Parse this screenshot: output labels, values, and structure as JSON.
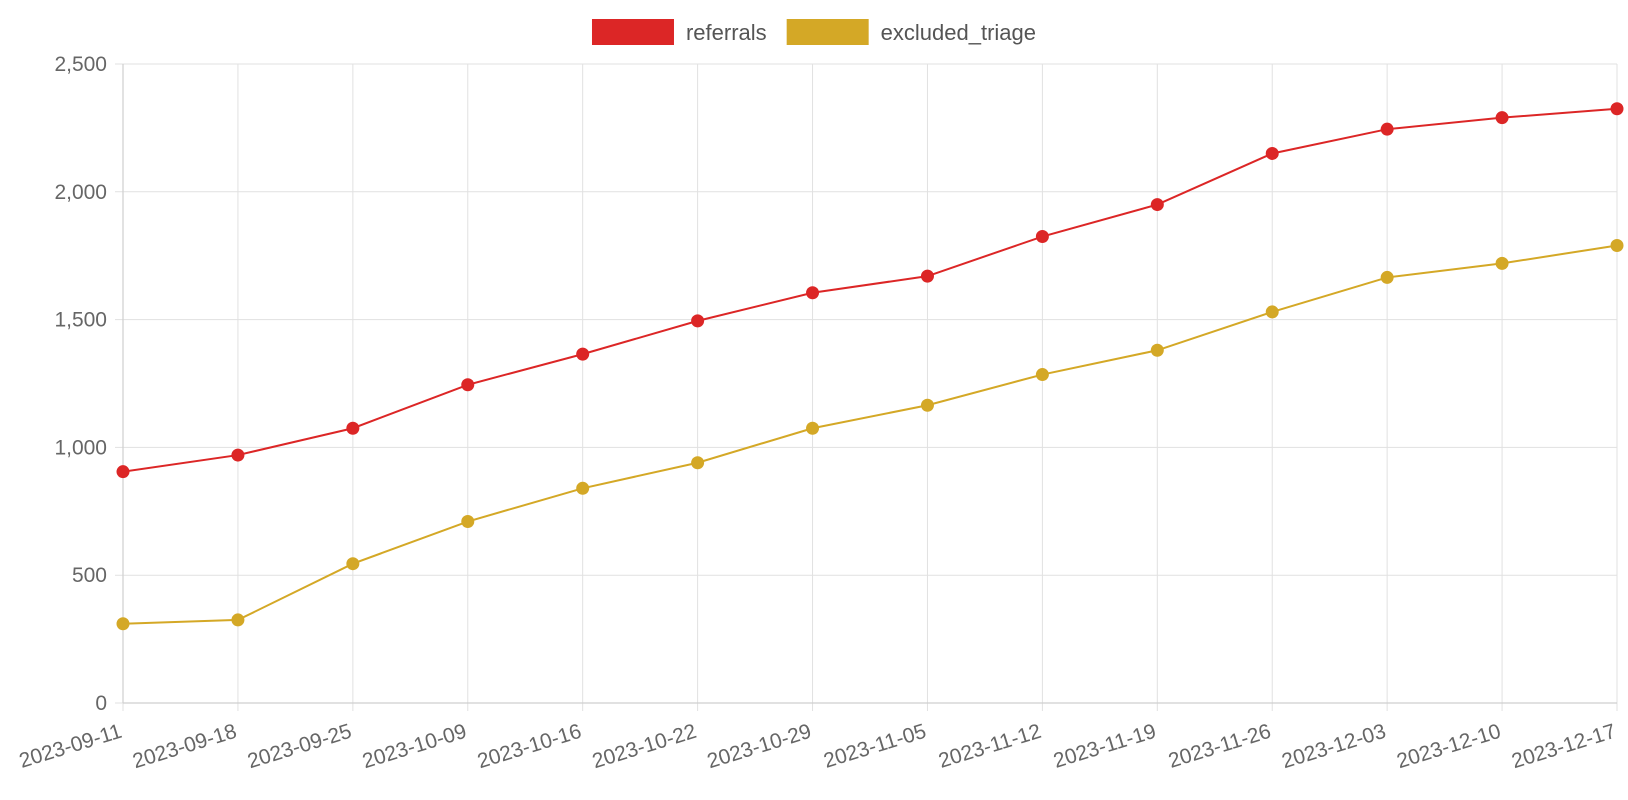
{
  "chart_data": {
    "type": "line",
    "title": "",
    "xlabel": "",
    "ylabel": "",
    "x": [
      "2023-09-11",
      "2023-09-18",
      "2023-09-25",
      "2023-10-09",
      "2023-10-16",
      "2023-10-22",
      "2023-10-29",
      "2023-11-05",
      "2023-11-12",
      "2023-11-19",
      "2023-11-26",
      "2023-12-03",
      "2023-12-10",
      "2023-12-17"
    ],
    "ylim": [
      0,
      2500
    ],
    "yticks": [
      0,
      500,
      1000,
      1500,
      2000,
      2500
    ],
    "ytick_labels": [
      "0",
      "500",
      "1,000",
      "1,500",
      "2,000",
      "2,500"
    ],
    "grid": true,
    "legend_position": "top-center",
    "series": [
      {
        "name": "referrals",
        "color": "#dc2626",
        "values": [
          905,
          970,
          1075,
          1245,
          1365,
          1495,
          1605,
          1670,
          1825,
          1950,
          2150,
          2245,
          2290,
          2325
        ]
      },
      {
        "name": "excluded_triage",
        "color": "#d4a826",
        "values": [
          310,
          325,
          545,
          710,
          840,
          940,
          1075,
          1165,
          1285,
          1380,
          1530,
          1665,
          1720,
          1790
        ]
      }
    ]
  }
}
